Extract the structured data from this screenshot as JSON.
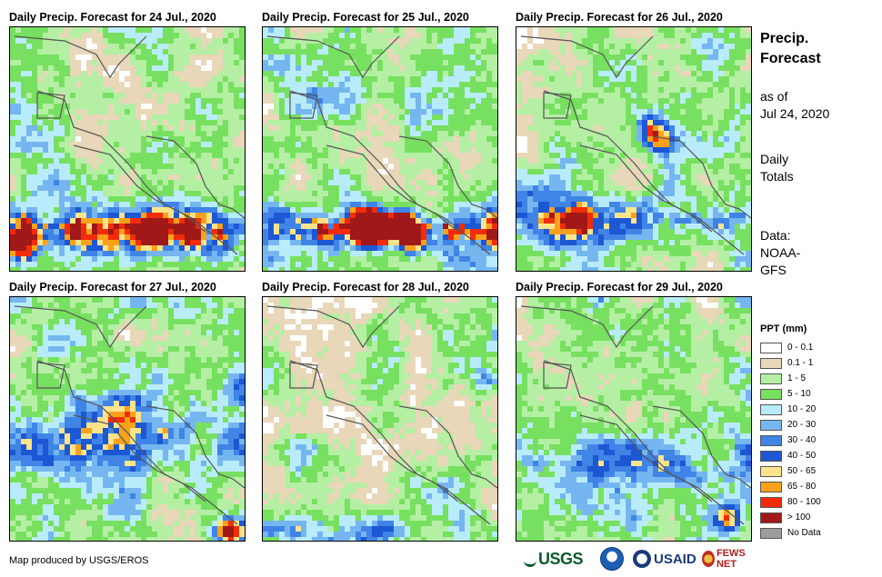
{
  "panels": [
    {
      "title": "Daily Precip. Forecast for 24 Jul., 2020",
      "pattern": "d24"
    },
    {
      "title": "Daily Precip. Forecast for 25 Jul., 2020",
      "pattern": "d25"
    },
    {
      "title": "Daily Precip. Forecast for 26 Jul., 2020",
      "pattern": "d26"
    },
    {
      "title": "Daily Precip. Forecast for 27 Jul., 2020",
      "pattern": "d27"
    },
    {
      "title": "Daily Precip. Forecast for 28 Jul., 2020",
      "pattern": "d28"
    },
    {
      "title": "Daily Precip. Forecast for 29 Jul., 2020",
      "pattern": "d29"
    }
  ],
  "sidebar": {
    "title_line1": "Precip.",
    "title_line2": "Forecast",
    "asof_line1": "as of",
    "asof_line2": "Jul 24, 2020",
    "totals_line1": "Daily",
    "totals_line2": "Totals",
    "data_line1": "Data:",
    "data_line2": "NOAA-",
    "data_line3": "GFS"
  },
  "legend": {
    "title": "PPT (mm)",
    "items": [
      {
        "label": "0 - 0.1",
        "color": "#ffffff"
      },
      {
        "label": "0.1 - 1",
        "color": "#e8d7b8"
      },
      {
        "label": "1 - 5",
        "color": "#b4efa4"
      },
      {
        "label": "5 - 10",
        "color": "#78e060"
      },
      {
        "label": "10 - 20",
        "color": "#b8ecfa"
      },
      {
        "label": "20 - 30",
        "color": "#76b6f0"
      },
      {
        "label": "30 - 40",
        "color": "#3f84e6"
      },
      {
        "label": "40 - 50",
        "color": "#1d57d4"
      },
      {
        "label": "50 - 65",
        "color": "#fde48a"
      },
      {
        "label": "65 - 80",
        "color": "#f7a21a"
      },
      {
        "label": "80 - 100",
        "color": "#f22c0a"
      },
      {
        "label": "> 100",
        "color": "#a01818"
      },
      {
        "label": "No Data",
        "color": "#9c9c9c"
      }
    ]
  },
  "footer": {
    "credit": "Map produced by USGS/EROS",
    "logo_usgs": "USGS",
    "logo_usaid": "USAID",
    "logo_fews": "FEWS NET"
  }
}
